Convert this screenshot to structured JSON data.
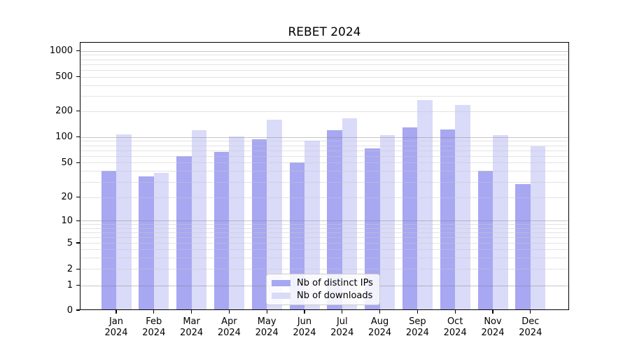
{
  "chart_data": {
    "type": "bar",
    "title": "REBET 2024",
    "categories": [
      "Jan\n2024",
      "Feb\n2024",
      "Mar\n2024",
      "Apr\n2024",
      "May\n2024",
      "Jun\n2024",
      "Jul\n2024",
      "Aug\n2024",
      "Sep\n2024",
      "Oct\n2024",
      "Nov\n2024",
      "Dec\n2024"
    ],
    "series": [
      {
        "name": "Nb of distinct IPs",
        "color": "#a7a7f2",
        "values": [
          40,
          35,
          60,
          67,
          94,
          50,
          120,
          73,
          130,
          122,
          40,
          28
        ]
      },
      {
        "name": "Nb of downloads",
        "color": "#dadaf9",
        "values": [
          107,
          38,
          120,
          101,
          160,
          91,
          166,
          106,
          270,
          235,
          105,
          78
        ]
      }
    ],
    "yscale": "symlog",
    "y_ticks": [
      0,
      1,
      2,
      5,
      10,
      20,
      50,
      100,
      200,
      500,
      1000
    ],
    "ylim": [
      0,
      1270
    ],
    "xlabel": "",
    "ylabel": "",
    "grid": "horizontal major+minor",
    "legend_position": "lower center",
    "colors": {
      "axis": "#000000",
      "grid_major": "#b9b9b9",
      "grid_minor": "#e3e3e3",
      "background": "#ffffff"
    }
  }
}
